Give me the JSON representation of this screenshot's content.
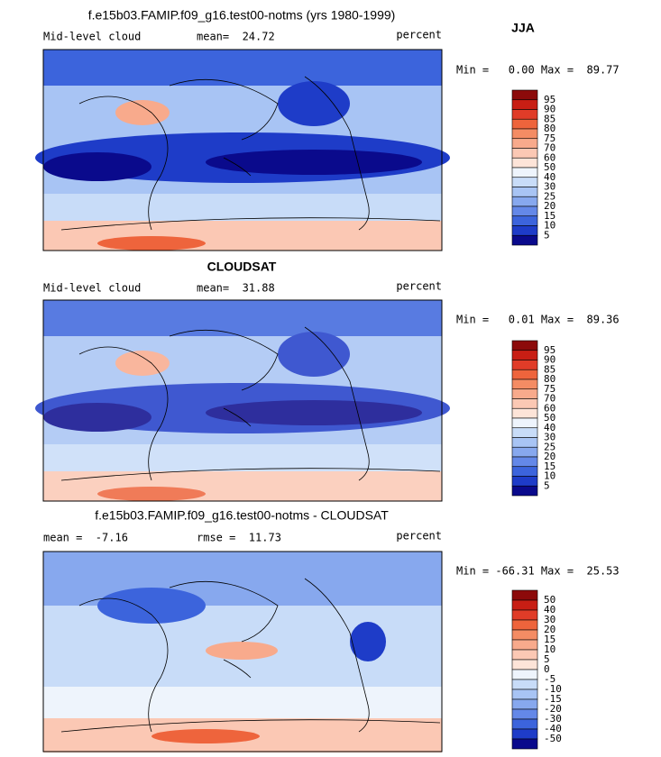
{
  "header": {
    "season": "JJA"
  },
  "colorbar_colors": [
    "#8c0a0a",
    "#c81e14",
    "#e03c28",
    "#ee643c",
    "#f48c64",
    "#f8aa8c",
    "#fbc8b4",
    "#fde4d8",
    "#eef4fc",
    "#c8dcf8",
    "#a8c4f4",
    "#87a8ee",
    "#6488e8",
    "#3c64dc",
    "#1e3cc8",
    "#0a0a8c"
  ],
  "panels": [
    {
      "title": "f.e15b03.FAMIP.f09_g16.test00-notms (yrs 1980-1999)",
      "left": "Mid-level cloud",
      "center": "mean=  24.72",
      "right": "percent",
      "range": "Min =   0.00 Max =  89.77",
      "colorbar_labels": [
        "95",
        "90",
        "85",
        "80",
        "75",
        "70",
        "60",
        "50",
        "40",
        "30",
        "25",
        "20",
        "15",
        "10",
        "5"
      ]
    },
    {
      "title": "CLOUDSAT",
      "left": "Mid-level cloud",
      "center": "mean=  31.88",
      "right": "percent",
      "range": "Min =   0.01 Max =  89.36",
      "colorbar_labels": [
        "95",
        "90",
        "85",
        "80",
        "75",
        "70",
        "60",
        "50",
        "40",
        "30",
        "25",
        "20",
        "15",
        "10",
        "5"
      ]
    },
    {
      "title": "f.e15b03.FAMIP.f09_g16.test00-notms - CLOUDSAT",
      "left": "mean =  -7.16",
      "center": "rmse =  11.73",
      "right": "percent",
      "range": "Min = -66.31 Max =  25.53",
      "colorbar_labels": [
        "50",
        "40",
        "30",
        "20",
        "15",
        "10",
        "5",
        "0",
        "-5",
        "-10",
        "-15",
        "-20",
        "-30",
        "-40",
        "-50"
      ]
    }
  ]
}
